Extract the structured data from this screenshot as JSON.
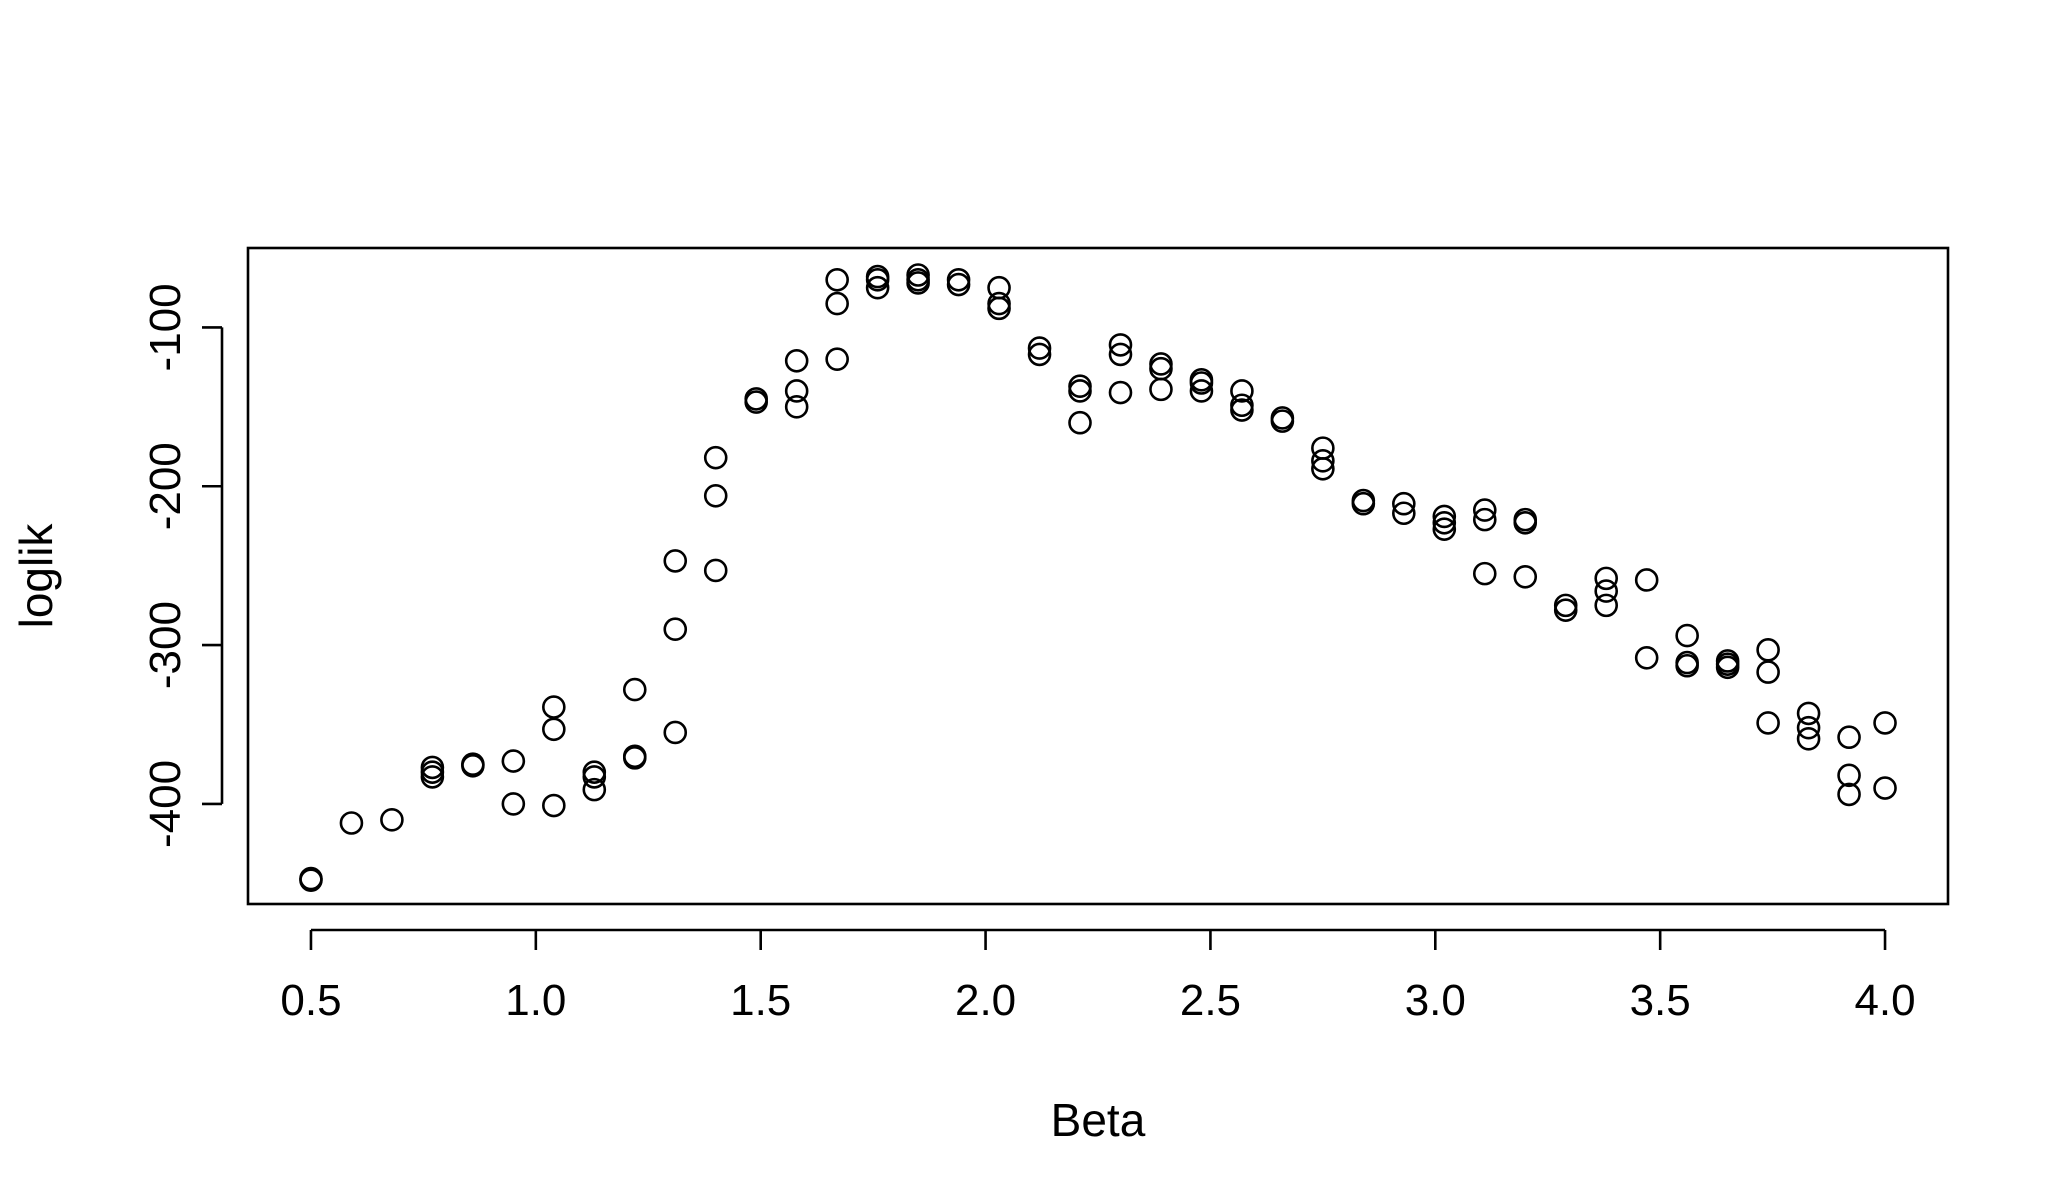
{
  "chart_data": {
    "type": "scatter",
    "title": "",
    "xlabel": "Beta",
    "ylabel": "loglik",
    "xlim": [
      0.36,
      4.14
    ],
    "ylim": [
      -463,
      -50
    ],
    "x_ticks": [
      0.5,
      1.0,
      1.5,
      2.0,
      2.5,
      3.0,
      3.5,
      4.0
    ],
    "x_tick_labels": [
      "0.5",
      "1.0",
      "1.5",
      "2.0",
      "2.5",
      "3.0",
      "3.5",
      "4.0"
    ],
    "y_ticks": [
      -400,
      -300,
      -200,
      -100
    ],
    "y_tick_labels": [
      "-400",
      "-300",
      "-200",
      "-100"
    ],
    "grid": false,
    "legend": "none",
    "marker": "open-circle",
    "color": "#000000",
    "series": [
      {
        "points": [
          [
            0.5,
            -447
          ],
          [
            0.5,
            -448
          ],
          [
            0.59,
            -412
          ],
          [
            0.68,
            -410
          ],
          [
            0.77,
            -377
          ],
          [
            0.77,
            -380
          ],
          [
            0.77,
            -383
          ],
          [
            0.86,
            -376
          ],
          [
            0.86,
            -375
          ],
          [
            0.95,
            -373
          ],
          [
            0.95,
            -400
          ],
          [
            1.04,
            -339
          ],
          [
            1.04,
            -353
          ],
          [
            1.04,
            -401
          ],
          [
            1.13,
            -380
          ],
          [
            1.13,
            -383
          ],
          [
            1.13,
            -391
          ],
          [
            1.22,
            -328
          ],
          [
            1.22,
            -370
          ],
          [
            1.22,
            -371
          ],
          [
            1.31,
            -247
          ],
          [
            1.31,
            -290
          ],
          [
            1.31,
            -355
          ],
          [
            1.4,
            -182
          ],
          [
            1.4,
            -206
          ],
          [
            1.4,
            -253
          ],
          [
            1.49,
            -145
          ],
          [
            1.49,
            -147
          ],
          [
            1.58,
            -121
          ],
          [
            1.58,
            -140
          ],
          [
            1.58,
            -150
          ],
          [
            1.67,
            -70
          ],
          [
            1.67,
            -85
          ],
          [
            1.67,
            -120
          ],
          [
            1.76,
            -68
          ],
          [
            1.76,
            -70
          ],
          [
            1.76,
            -75
          ],
          [
            1.85,
            -67
          ],
          [
            1.85,
            -70
          ],
          [
            1.85,
            -72
          ],
          [
            1.94,
            -70
          ],
          [
            1.94,
            -73
          ],
          [
            2.03,
            -75
          ],
          [
            2.03,
            -85
          ],
          [
            2.03,
            -88
          ],
          [
            2.12,
            -113
          ],
          [
            2.12,
            -117
          ],
          [
            2.21,
            -137
          ],
          [
            2.21,
            -140
          ],
          [
            2.21,
            -160
          ],
          [
            2.3,
            -111
          ],
          [
            2.3,
            -117
          ],
          [
            2.3,
            -141
          ],
          [
            2.39,
            -123
          ],
          [
            2.39,
            -126
          ],
          [
            2.39,
            -139
          ],
          [
            2.48,
            -133
          ],
          [
            2.48,
            -135
          ],
          [
            2.48,
            -140
          ],
          [
            2.57,
            -140
          ],
          [
            2.57,
            -149
          ],
          [
            2.57,
            -152
          ],
          [
            2.66,
            -157
          ],
          [
            2.66,
            -159
          ],
          [
            2.75,
            -176
          ],
          [
            2.75,
            -184
          ],
          [
            2.75,
            -189
          ],
          [
            2.84,
            -209
          ],
          [
            2.84,
            -211
          ],
          [
            2.93,
            -211
          ],
          [
            2.93,
            -217
          ],
          [
            3.02,
            -219
          ],
          [
            3.02,
            -223
          ],
          [
            3.02,
            -227
          ],
          [
            3.11,
            -215
          ],
          [
            3.11,
            -221
          ],
          [
            3.11,
            -255
          ],
          [
            3.2,
            -221
          ],
          [
            3.2,
            -223
          ],
          [
            3.2,
            -257
          ],
          [
            3.29,
            -275
          ],
          [
            3.29,
            -278
          ],
          [
            3.38,
            -258
          ],
          [
            3.38,
            -266
          ],
          [
            3.38,
            -275
          ],
          [
            3.47,
            -259
          ],
          [
            3.47,
            -308
          ],
          [
            3.56,
            -294
          ],
          [
            3.56,
            -311
          ],
          [
            3.56,
            -313
          ],
          [
            3.65,
            -310
          ],
          [
            3.65,
            -312
          ],
          [
            3.65,
            -314
          ],
          [
            3.74,
            -303
          ],
          [
            3.74,
            -317
          ],
          [
            3.74,
            -349
          ],
          [
            3.83,
            -343
          ],
          [
            3.83,
            -352
          ],
          [
            3.83,
            -359
          ],
          [
            3.92,
            -358
          ],
          [
            3.92,
            -382
          ],
          [
            3.92,
            -394
          ],
          [
            4.0,
            -349
          ],
          [
            4.0,
            -390
          ]
        ]
      }
    ]
  }
}
